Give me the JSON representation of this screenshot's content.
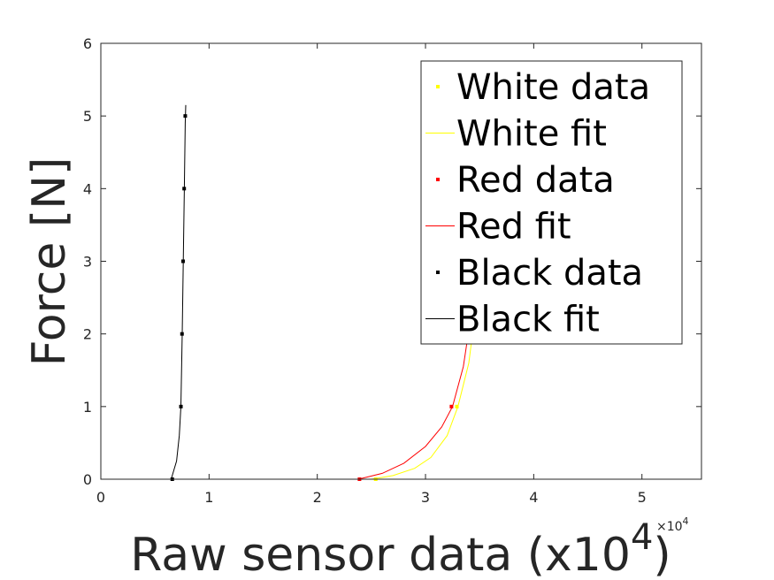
{
  "chart_data": {
    "type": "scatter",
    "xlabel": "Raw sensor data (x10",
    "xlabel_sup": "4",
    "xlabel_end": ")",
    "ylabel": "Force [N]",
    "x_exponent_base": "×10",
    "x_exponent_power": "4",
    "xlim": [
      0,
      5.55
    ],
    "ylim": [
      0,
      6
    ],
    "xticks": [
      0,
      1,
      2,
      3,
      4,
      5
    ],
    "yticks": [
      0,
      1,
      2,
      3,
      4,
      5,
      6
    ],
    "xtick_labels": [
      "0",
      "1",
      "2",
      "3",
      "4",
      "5"
    ],
    "ytick_labels": [
      "0",
      "1",
      "2",
      "3",
      "4",
      "5",
      "6"
    ],
    "grid": false,
    "legend_position": "top-right",
    "legend": [
      {
        "label": "White data",
        "kind": "marker",
        "color": "#ffff00"
      },
      {
        "label": "White fit",
        "kind": "line",
        "color": "#ffff00"
      },
      {
        "label": "Red data",
        "kind": "marker",
        "color": "#ff0000"
      },
      {
        "label": "Red fit",
        "kind": "line",
        "color": "#ff0000"
      },
      {
        "label": "Black data",
        "kind": "marker",
        "color": "#000000"
      },
      {
        "label": "Black fit",
        "kind": "line",
        "color": "#000000"
      }
    ],
    "series": [
      {
        "name": "White data",
        "kind": "marker",
        "color": "#ffff00",
        "x": [
          2.54,
          3.29
        ],
        "y": [
          0,
          1
        ]
      },
      {
        "name": "White fit",
        "kind": "line",
        "color": "#ffff00",
        "x": [
          2.5,
          2.7,
          2.9,
          3.05,
          3.2,
          3.3,
          3.4,
          3.46,
          3.5
        ],
        "y": [
          0,
          0.05,
          0.15,
          0.3,
          0.6,
          1.0,
          1.6,
          2.3,
          2.8
        ]
      },
      {
        "name": "Red data",
        "kind": "marker",
        "color": "#ff0000",
        "x": [
          2.39,
          3.24
        ],
        "y": [
          0,
          1
        ]
      },
      {
        "name": "Red fit",
        "kind": "line",
        "color": "#ff0000",
        "x": [
          2.38,
          2.6,
          2.8,
          3.0,
          3.15,
          3.25,
          3.35,
          3.41,
          3.45
        ],
        "y": [
          0,
          0.08,
          0.22,
          0.45,
          0.72,
          1.0,
          1.55,
          2.15,
          2.7
        ]
      },
      {
        "name": "Black data",
        "kind": "marker",
        "color": "#000000",
        "x": [
          0.66,
          0.74,
          0.75,
          0.76,
          0.77,
          0.78
        ],
        "y": [
          0,
          1,
          2,
          3,
          4,
          5
        ]
      },
      {
        "name": "Black fit",
        "kind": "line",
        "color": "#000000",
        "x": [
          0.65,
          0.7,
          0.725,
          0.74,
          0.752,
          0.762,
          0.772,
          0.78,
          0.785
        ],
        "y": [
          0,
          0.25,
          0.6,
          1.0,
          2.0,
          3.0,
          4.0,
          4.9,
          5.15
        ]
      }
    ]
  }
}
